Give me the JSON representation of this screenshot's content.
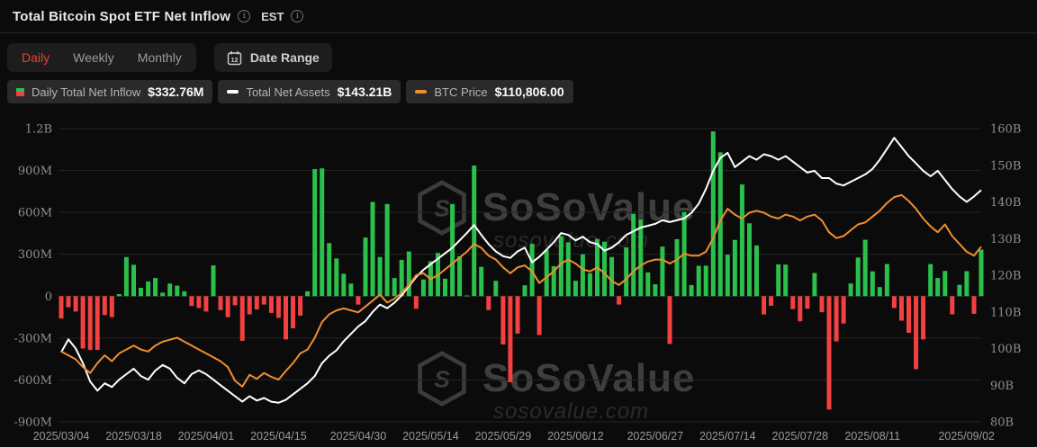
{
  "header": {
    "title": "Total Bitcoin Spot ETF Net Inflow",
    "timezone": "EST"
  },
  "controls": {
    "tabs": [
      {
        "label": "Daily",
        "active": true
      },
      {
        "label": "Weekly",
        "active": false
      },
      {
        "label": "Monthly",
        "active": false
      }
    ],
    "date_range_label": "Date Range",
    "calendar_icon_day": "12"
  },
  "legend": [
    {
      "icon": "green-red-bar-icon",
      "label": "Daily Total Net Inflow",
      "value": "$332.76M"
    },
    {
      "icon": "white-dash-icon",
      "label": "Total Net Assets",
      "value": "$143.21B"
    },
    {
      "icon": "orange-dash-icon",
      "label": "BTC Price",
      "value": "$110,806.00"
    }
  ],
  "watermark": {
    "name": "SoSoValue",
    "domain": "sosovalue.com",
    "logo": "cube-s-logo"
  },
  "colors": {
    "accent_red": "#e5432d",
    "bar_green": "#2bc04c",
    "bar_red": "#f34141",
    "net_assets_line": "#ffffff",
    "btc_line": "#f08d33",
    "axis_text": "#8f8f8f",
    "grid": "#242424",
    "background": "#0b0b0b"
  },
  "chart_data": {
    "type": "combo",
    "title": "Total Bitcoin Spot ETF Net Inflow",
    "legend_position": "top-left",
    "grid": true,
    "left_axis": {
      "unit": "USD",
      "ticks": [
        "1.2B",
        "900M",
        "600M",
        "300M",
        "0",
        "-300M",
        "-600M",
        "-900M"
      ],
      "tick_values": [
        1200,
        900,
        600,
        300,
        0,
        -300,
        -600,
        -900
      ],
      "range": [
        1200,
        -900
      ]
    },
    "right_axis": {
      "unit": "USD",
      "ticks": [
        "160B",
        "150B",
        "140B",
        "130B",
        "120B",
        "110B",
        "100B",
        "90B",
        "80B"
      ],
      "tick_values": [
        160,
        150,
        140,
        130,
        120,
        110,
        100,
        90,
        80
      ],
      "range": [
        160,
        80
      ]
    },
    "x_axis": {
      "tick_labels": [
        "2025/03/04",
        "2025/03/18",
        "2025/04/01",
        "2025/04/15",
        "2025/04/30",
        "2025/05/14",
        "2025/05/29",
        "2025/06/12",
        "2025/06/27",
        "2025/07/14",
        "2025/07/28",
        "2025/08/11",
        "2025/09/02"
      ],
      "tick_indices": [
        0,
        10,
        20,
        30,
        41,
        51,
        61,
        71,
        82,
        92,
        102,
        112,
        127
      ],
      "start": "2025/03/04",
      "end": "2025/09/02"
    },
    "series": [
      {
        "name": "Daily Total Net Inflow",
        "type": "bar",
        "axis": "left",
        "unit": "M USD",
        "latest_label": "$332.76M",
        "values": [
          -160,
          -80,
          -110,
          -375,
          -385,
          -385,
          -135,
          -150,
          15,
          280,
          225,
          60,
          105,
          130,
          25,
          90,
          75,
          35,
          -70,
          -85,
          -110,
          220,
          -100,
          -150,
          -65,
          -320,
          -130,
          -95,
          -60,
          -120,
          -155,
          -310,
          -230,
          -140,
          35,
          910,
          915,
          380,
          270,
          160,
          90,
          -60,
          420,
          675,
          280,
          660,
          130,
          260,
          320,
          -90,
          120,
          250,
          310,
          125,
          660,
          285,
          5,
          935,
          210,
          -100,
          110,
          -346,
          -616,
          -268,
          78,
          375,
          -278,
          330,
          215,
          430,
          385,
          110,
          300,
          165,
          410,
          390,
          280,
          -60,
          350,
          590,
          548,
          170,
          85,
          355,
          -342,
          408,
          602,
          80,
          217,
          218,
          1180,
          1030,
          297,
          403,
          800,
          522,
          363,
          -131,
          -68,
          227,
          226,
          -93,
          -180,
          -90,
          166,
          -115,
          -812,
          -324,
          -196,
          91,
          277,
          404,
          178,
          65,
          230,
          -85,
          -175,
          -262,
          -523,
          -310,
          230,
          130,
          180,
          -130,
          81,
          179,
          -126,
          333
        ]
      },
      {
        "name": "Total Net Assets",
        "type": "line",
        "axis": "right",
        "unit": "B USD",
        "latest_label": "$143.21B",
        "values": [
          99,
          102.5,
          100,
          96,
          91,
          88.5,
          90.5,
          89.5,
          91.5,
          93,
          94.5,
          92.5,
          91.5,
          94,
          95.5,
          94.5,
          92,
          90.5,
          93,
          94,
          93,
          91.5,
          90,
          88.5,
          87,
          85.5,
          87,
          85.8,
          86.5,
          85.5,
          85.2,
          86,
          87.5,
          89,
          90.5,
          92.5,
          96,
          98,
          99.5,
          102,
          104,
          106,
          107.5,
          110,
          112,
          111,
          112.5,
          114.5,
          117,
          119.5,
          121.5,
          123,
          124.5,
          126,
          127.5,
          129.5,
          131.5,
          133.7,
          131,
          128.5,
          126.5,
          125.2,
          124.7,
          126.5,
          127.5,
          123.5,
          125,
          127,
          129,
          131.5,
          131,
          129.5,
          130.5,
          129,
          128.5,
          126.7,
          127.5,
          129,
          131,
          132,
          133,
          133.5,
          134,
          135,
          134.5,
          135,
          135.5,
          137,
          139.5,
          143.5,
          148.5,
          152,
          153.4,
          149.5,
          151,
          152.5,
          151.5,
          153,
          152.5,
          151.5,
          152.5,
          151,
          149.5,
          148,
          148.5,
          146.5,
          146.5,
          145,
          144.5,
          145.5,
          146.5,
          147.5,
          149,
          151.5,
          154.5,
          157.5,
          155,
          152.5,
          150.5,
          148.5,
          147,
          148.5,
          146,
          143.5,
          141.5,
          140,
          141.5,
          143.21
        ]
      },
      {
        "name": "BTC Price",
        "type": "line",
        "axis": "hidden",
        "unit": "k USD",
        "latest_label": "$110,806.00",
        "render_range": {
          "min": 66,
          "max": 141
        },
        "values": [
          84,
          83,
          82,
          80,
          78.5,
          81,
          83,
          81.5,
          83.5,
          84.5,
          85.5,
          84.5,
          84,
          85.5,
          86.5,
          87,
          87.5,
          86.5,
          85.5,
          84.5,
          83.5,
          82.5,
          81.5,
          80,
          76.5,
          75,
          78,
          77,
          78.5,
          77.5,
          76.8,
          79,
          81,
          83.5,
          84.5,
          87.5,
          91.5,
          93.5,
          94.5,
          95,
          94.5,
          94,
          95.5,
          97,
          98.5,
          96.5,
          97.5,
          99,
          101,
          103.5,
          104,
          102.5,
          103.5,
          105,
          106.5,
          108,
          109.5,
          111.5,
          110.5,
          108.5,
          107.5,
          105.5,
          104,
          105.5,
          106,
          104.5,
          101.5,
          103,
          104.5,
          106.5,
          107.5,
          106.5,
          105,
          104.5,
          105.5,
          104,
          102,
          101,
          102.5,
          104.5,
          106,
          107,
          107.5,
          107.5,
          106.5,
          107.5,
          109,
          108.5,
          108.5,
          109.5,
          113,
          117.5,
          120.5,
          119,
          118,
          119.5,
          120,
          119.5,
          118.5,
          118,
          119,
          118.5,
          117.5,
          118.5,
          119,
          117.5,
          114.5,
          113,
          113.5,
          115,
          116.5,
          117,
          118.5,
          120,
          122,
          123.5,
          124,
          122.5,
          120.5,
          118,
          116,
          114.5,
          116.5,
          113.5,
          111.5,
          109.5,
          108.5,
          110.806
        ]
      }
    ]
  }
}
